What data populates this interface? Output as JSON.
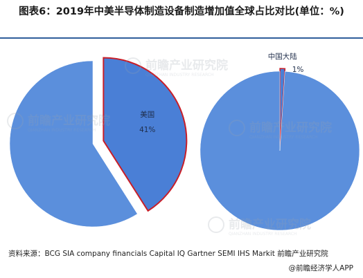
{
  "title": "图表6：2019年中美半导体制造设备制造增加值全球占比对比(单位：%)",
  "colors": {
    "slice_fill": "#5b8fdc",
    "slice_highlight": "#4a7fd6",
    "highlight_stroke": "#c81e28",
    "topline": "#2f5d9a"
  },
  "chart_data": [
    {
      "type": "pie",
      "slices": [
        {
          "label": "美国",
          "value": 41,
          "value_text": "41%",
          "highlighted": true
        },
        {
          "label": "",
          "value": 59,
          "value_text": "",
          "highlighted": false
        }
      ]
    },
    {
      "type": "pie",
      "slices": [
        {
          "label": "中国大陆",
          "value": 1,
          "value_text": "1%",
          "highlighted": true
        },
        {
          "label": "",
          "value": 99,
          "value_text": "",
          "highlighted": false
        }
      ]
    }
  ],
  "source": "资料来源：BCG SIA company financials Capital IQ Gartner SEMI IHS Markit 前瞻产业研究院",
  "credit": "@前瞻经济学人APP",
  "watermark": {
    "text": "前瞻产业研究院",
    "subtext": "QIANZHAN INDUSTRY RESEARCH"
  }
}
